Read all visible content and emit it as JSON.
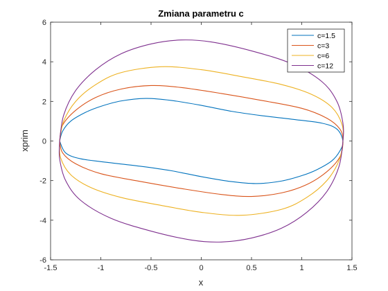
{
  "chart_data": {
    "type": "line",
    "title": "Zmiana parametru c",
    "xlabel": "x",
    "ylabel": "xprim",
    "xlim": [
      -1.5,
      1.5
    ],
    "ylim": [
      -6,
      6
    ],
    "x_ticks": [
      -1.5,
      -1,
      -0.5,
      0,
      0.5,
      1,
      1.5
    ],
    "x_tick_labels": [
      "-1.5",
      "-1",
      "-0.5",
      "0",
      "0.5",
      "1",
      "1.5"
    ],
    "y_ticks": [
      -6,
      -4,
      -2,
      0,
      2,
      4,
      6
    ],
    "y_tick_labels": [
      "-6",
      "-4",
      "-2",
      "0",
      "2",
      "4",
      "6"
    ],
    "grid": false,
    "legend_position": "top-right",
    "series": [
      {
        "name": "c=1.5",
        "color": "#0072BD",
        "points": [
          [
            -1.41,
            0
          ],
          [
            -1.38,
            0.5
          ],
          [
            -1.3,
            1.0
          ],
          [
            -1.15,
            1.45
          ],
          [
            -1.0,
            1.75
          ],
          [
            -0.8,
            2.02
          ],
          [
            -0.55,
            2.15
          ],
          [
            -0.3,
            2.05
          ],
          [
            0.0,
            1.8
          ],
          [
            0.3,
            1.5
          ],
          [
            0.6,
            1.28
          ],
          [
            0.9,
            1.1
          ],
          [
            1.2,
            0.9
          ],
          [
            1.35,
            0.6
          ],
          [
            1.41,
            0
          ],
          [
            1.38,
            -0.5
          ],
          [
            1.3,
            -1.0
          ],
          [
            1.15,
            -1.45
          ],
          [
            1.0,
            -1.75
          ],
          [
            0.8,
            -2.02
          ],
          [
            0.55,
            -2.15
          ],
          [
            0.3,
            -2.05
          ],
          [
            0.0,
            -1.8
          ],
          [
            -0.3,
            -1.5
          ],
          [
            -0.6,
            -1.28
          ],
          [
            -0.9,
            -1.1
          ],
          [
            -1.2,
            -0.9
          ],
          [
            -1.35,
            -0.6
          ],
          [
            -1.41,
            0
          ]
        ]
      },
      {
        "name": "c=3",
        "color": "#D95319",
        "points": [
          [
            -1.41,
            0
          ],
          [
            -1.38,
            0.8
          ],
          [
            -1.25,
            1.55
          ],
          [
            -1.05,
            2.2
          ],
          [
            -0.8,
            2.62
          ],
          [
            -0.5,
            2.8
          ],
          [
            -0.2,
            2.7
          ],
          [
            0.2,
            2.4
          ],
          [
            0.6,
            2.05
          ],
          [
            1.0,
            1.65
          ],
          [
            1.25,
            1.15
          ],
          [
            1.38,
            0.6
          ],
          [
            1.41,
            0
          ],
          [
            1.38,
            -0.8
          ],
          [
            1.25,
            -1.55
          ],
          [
            1.05,
            -2.2
          ],
          [
            0.8,
            -2.62
          ],
          [
            0.5,
            -2.8
          ],
          [
            0.2,
            -2.7
          ],
          [
            -0.2,
            -2.4
          ],
          [
            -0.6,
            -2.05
          ],
          [
            -1.0,
            -1.65
          ],
          [
            -1.25,
            -1.15
          ],
          [
            -1.38,
            -0.6
          ],
          [
            -1.41,
            0
          ]
        ]
      },
      {
        "name": "c=6",
        "color": "#EDB120",
        "points": [
          [
            -1.41,
            0
          ],
          [
            -1.37,
            1.0
          ],
          [
            -1.25,
            2.0
          ],
          [
            -1.05,
            2.85
          ],
          [
            -0.8,
            3.45
          ],
          [
            -0.4,
            3.75
          ],
          [
            0.0,
            3.6
          ],
          [
            0.4,
            3.25
          ],
          [
            0.8,
            2.85
          ],
          [
            1.1,
            2.35
          ],
          [
            1.3,
            1.7
          ],
          [
            1.4,
            0.85
          ],
          [
            1.41,
            0
          ],
          [
            1.37,
            -1.0
          ],
          [
            1.25,
            -2.0
          ],
          [
            1.05,
            -2.85
          ],
          [
            0.8,
            -3.45
          ],
          [
            0.4,
            -3.75
          ],
          [
            0.0,
            -3.6
          ],
          [
            -0.4,
            -3.25
          ],
          [
            -0.8,
            -2.85
          ],
          [
            -1.1,
            -2.35
          ],
          [
            -1.3,
            -1.7
          ],
          [
            -1.4,
            -0.85
          ],
          [
            -1.41,
            0
          ]
        ]
      },
      {
        "name": "c=12",
        "color": "#7E2F8E",
        "points": [
          [
            -1.41,
            0
          ],
          [
            -1.37,
            1.3
          ],
          [
            -1.25,
            2.55
          ],
          [
            -1.05,
            3.6
          ],
          [
            -0.8,
            4.4
          ],
          [
            -0.5,
            4.9
          ],
          [
            -0.2,
            5.1
          ],
          [
            0.1,
            5.0
          ],
          [
            0.5,
            4.55
          ],
          [
            0.9,
            3.9
          ],
          [
            1.2,
            3.0
          ],
          [
            1.35,
            2.0
          ],
          [
            1.41,
            0.9
          ],
          [
            1.41,
            0
          ],
          [
            1.37,
            -1.3
          ],
          [
            1.25,
            -2.55
          ],
          [
            1.05,
            -3.6
          ],
          [
            0.8,
            -4.4
          ],
          [
            0.5,
            -4.9
          ],
          [
            0.2,
            -5.1
          ],
          [
            -0.1,
            -5.0
          ],
          [
            -0.5,
            -4.55
          ],
          [
            -0.9,
            -3.9
          ],
          [
            -1.2,
            -3.0
          ],
          [
            -1.35,
            -2.0
          ],
          [
            -1.41,
            -0.9
          ],
          [
            -1.41,
            0
          ]
        ]
      }
    ]
  }
}
